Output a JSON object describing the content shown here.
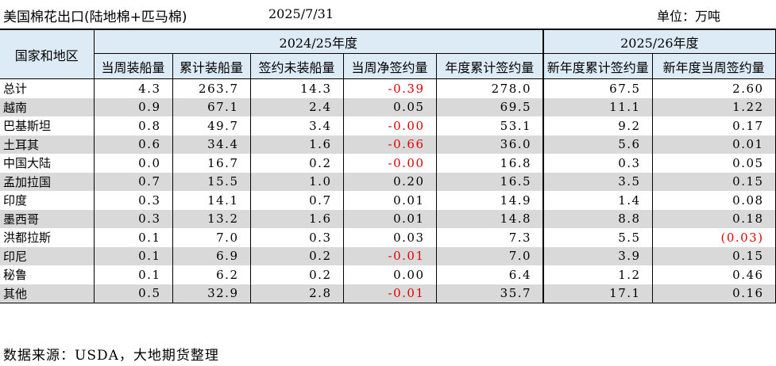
{
  "header": {
    "title": "美国棉花出口(陆地棉+匹马棉)",
    "date": "2025/7/31",
    "unit": "单位：万吨"
  },
  "table": {
    "region_header": "国家和地区",
    "season_2024": "2024/25年度",
    "season_2025": "2025/26年度",
    "columns": [
      "当周装船量",
      "累计装船量",
      "签约未装船量",
      "当周净签约量",
      "年度累计签约量",
      "新年度累计签约量",
      "新年度当周签约量"
    ],
    "rows": [
      {
        "name": "总计",
        "values": [
          "4.3",
          "263.7",
          "14.3",
          "-0.39",
          "278.0",
          "67.5",
          "2.60"
        ]
      },
      {
        "name": "越南",
        "values": [
          "0.9",
          "67.1",
          "2.4",
          "0.05",
          "69.5",
          "11.1",
          "1.22"
        ]
      },
      {
        "name": "巴基斯坦",
        "values": [
          "0.8",
          "49.7",
          "3.4",
          "-0.00",
          "53.1",
          "9.2",
          "0.17"
        ]
      },
      {
        "name": "土耳其",
        "values": [
          "0.6",
          "34.4",
          "1.6",
          "-0.66",
          "36.0",
          "5.6",
          "0.01"
        ]
      },
      {
        "name": "中国大陆",
        "values": [
          "0.0",
          "16.7",
          "0.2",
          "-0.00",
          "16.8",
          "0.3",
          "0.05"
        ]
      },
      {
        "name": "孟加拉国",
        "values": [
          "0.7",
          "15.5",
          "1.0",
          "0.20",
          "16.5",
          "3.5",
          "0.15"
        ]
      },
      {
        "name": "印度",
        "values": [
          "0.3",
          "14.1",
          "0.7",
          "0.01",
          "14.9",
          "1.4",
          "0.08"
        ]
      },
      {
        "name": "墨西哥",
        "values": [
          "0.3",
          "13.2",
          "1.6",
          "0.01",
          "14.8",
          "8.8",
          "0.18"
        ]
      },
      {
        "name": "洪都拉斯",
        "values": [
          "0.1",
          "7.0",
          "0.3",
          "0.03",
          "7.3",
          "5.5",
          "(0.03)"
        ]
      },
      {
        "name": "印尼",
        "values": [
          "0.1",
          "6.9",
          "0.2",
          "-0.01",
          "7.0",
          "3.9",
          "0.15"
        ]
      },
      {
        "name": "秘鲁",
        "values": [
          "0.1",
          "6.2",
          "0.2",
          "0.00",
          "6.4",
          "1.2",
          "0.46"
        ]
      },
      {
        "name": "其他",
        "values": [
          "0.5",
          "32.9",
          "2.8",
          "-0.01",
          "35.7",
          "17.1",
          "0.16"
        ]
      }
    ]
  },
  "footer": {
    "source": "数据来源：USDA，大地期货整理"
  },
  "colors": {
    "header_bg": "#ddebf7",
    "stripe_bg": "#d9d9d9",
    "negative": "#e00000"
  }
}
